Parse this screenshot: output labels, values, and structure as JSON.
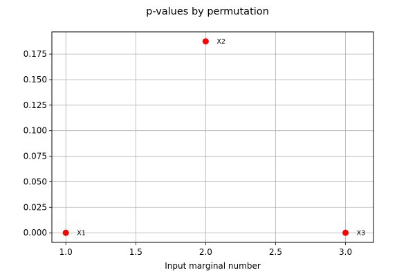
{
  "chart_data": {
    "type": "scatter",
    "title": "p-values by permutation",
    "xlabel": "Input marginal number",
    "ylabel": "",
    "xlim": [
      0.9,
      3.2
    ],
    "ylim": [
      -0.0094,
      0.1968
    ],
    "grid": true,
    "x_ticks": [
      1.0,
      1.5,
      2.0,
      2.5,
      3.0
    ],
    "x_tick_labels": [
      "1.0",
      "1.5",
      "2.0",
      "2.5",
      "3.0"
    ],
    "y_ticks": [
      0.0,
      0.025,
      0.05,
      0.075,
      0.1,
      0.125,
      0.15,
      0.175
    ],
    "y_tick_labels": [
      "0.000",
      "0.025",
      "0.050",
      "0.075",
      "0.100",
      "0.125",
      "0.150",
      "0.175"
    ],
    "point_color": "#ff0000",
    "points": [
      {
        "x": 1.0,
        "y": 0.0,
        "label": "X1"
      },
      {
        "x": 2.0,
        "y": 0.1875,
        "label": "X2"
      },
      {
        "x": 3.0,
        "y": 0.0,
        "label": "X3"
      }
    ]
  }
}
